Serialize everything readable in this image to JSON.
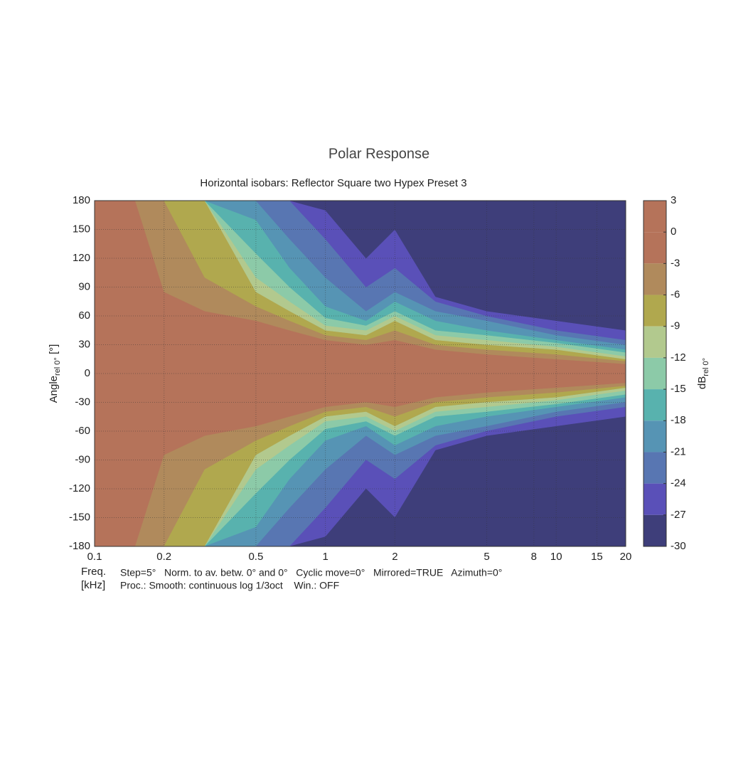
{
  "chart_data": {
    "type": "contour",
    "title": "Polar Response",
    "subtitle": "Horizontal isobars: Reflector  Square two  Hypex Preset 3",
    "y_label": {
      "main": "Angle",
      "sub": "rel 0°",
      "unit": " [°]"
    },
    "x_label": {
      "line1": "Freq.",
      "line2": "[kHz]"
    },
    "notes": [
      "Step=5°   Norm. to av. betw. 0° and 0°   Cyclic move=0°   Mirrored=TRUE   Azimuth=0°",
      "Proc.: Smooth: continuous log 1/3oct    Win.: OFF"
    ],
    "x_scale": "log",
    "xlim": [
      0.1,
      20
    ],
    "xticks": [
      0.1,
      0.2,
      0.5,
      1,
      2,
      5,
      8,
      10,
      15,
      20
    ],
    "ylim": [
      -180,
      180
    ],
    "yticks": [
      180,
      150,
      120,
      90,
      60,
      30,
      0,
      -30,
      -60,
      -90,
      -120,
      -150,
      -180
    ],
    "grid": true,
    "x": [
      0.1,
      0.15,
      0.2,
      0.3,
      0.5,
      0.7,
      1,
      1.5,
      2,
      3,
      5,
      10,
      20
    ],
    "contours": [
      {
        "level": -3,
        "values": [
          180,
          180,
          85,
          65,
          55,
          45,
          35,
          30,
          35,
          25,
          20,
          15,
          10
        ]
      },
      {
        "level": -6,
        "values": [
          180,
          180,
          180,
          100,
          70,
          55,
          40,
          35,
          45,
          30,
          25,
          20,
          13
        ]
      },
      {
        "level": -9,
        "values": [
          180,
          180,
          180,
          180,
          85,
          65,
          45,
          40,
          55,
          35,
          30,
          25,
          15
        ]
      },
      {
        "level": -12,
        "values": [
          180,
          180,
          180,
          180,
          100,
          75,
          50,
          45,
          60,
          40,
          35,
          28,
          18
        ]
      },
      {
        "level": -15,
        "values": [
          180,
          180,
          180,
          180,
          125,
          90,
          58,
          50,
          65,
          45,
          40,
          32,
          22
        ]
      },
      {
        "level": -18,
        "values": [
          180,
          180,
          180,
          180,
          160,
          110,
          70,
          55,
          75,
          55,
          45,
          35,
          25
        ]
      },
      {
        "level": -21,
        "values": [
          180,
          180,
          180,
          180,
          180,
          140,
          100,
          65,
          85,
          65,
          55,
          40,
          30
        ]
      },
      {
        "level": -24,
        "values": [
          180,
          180,
          180,
          180,
          180,
          180,
          140,
          90,
          110,
          75,
          60,
          45,
          35
        ]
      },
      {
        "level": -27,
        "values": [
          180,
          180,
          180,
          180,
          180,
          180,
          170,
          120,
          150,
          80,
          65,
          55,
          45
        ]
      }
    ],
    "colorbar": {
      "label": {
        "main": "dB",
        "sub": "rel 0°"
      },
      "levels": [
        3,
        0,
        -3,
        -6,
        -9,
        -12,
        -15,
        -18,
        -21,
        -24,
        -27,
        -30
      ],
      "colors": [
        "#b5735a",
        "#b5735a",
        "#b08a5c",
        "#b0a84e",
        "#b2c98e",
        "#8ccaa8",
        "#58b2ae",
        "#5694b4",
        "#5876b2",
        "#5a50b8",
        "#3e3e7a"
      ]
    }
  }
}
